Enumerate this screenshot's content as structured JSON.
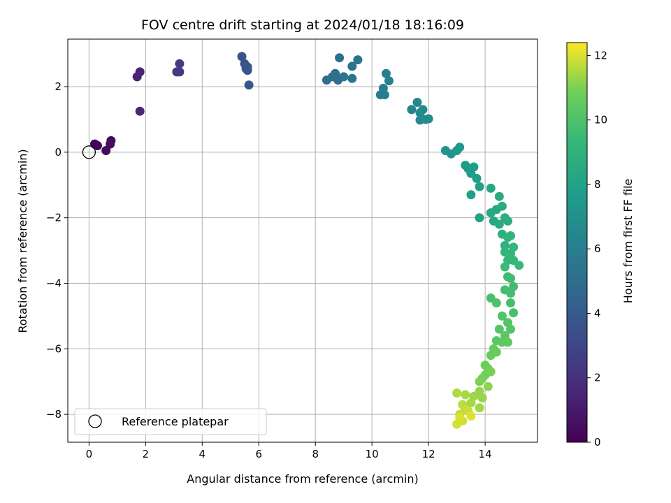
{
  "chart_data": {
    "type": "scatter",
    "title": "FOV centre drift starting at 2024/01/18 18:16:09",
    "xlabel": "Angular distance from reference (arcmin)",
    "ylabel": "Rotation from reference (arcmin)",
    "xlim": [
      -0.75,
      15.85
    ],
    "ylim": [
      -8.85,
      3.45
    ],
    "xticks": [
      0,
      2,
      4,
      6,
      8,
      10,
      12,
      14
    ],
    "yticks": [
      -8,
      -6,
      -4,
      -2,
      0,
      2
    ],
    "grid": true,
    "colorbar": {
      "label": "Hours from first FF file",
      "range": [
        0,
        12.4
      ],
      "ticks": [
        0,
        2,
        4,
        6,
        8,
        10,
        12
      ],
      "colormap": "viridis"
    },
    "reference": {
      "name": "Reference platepar",
      "x": 0,
      "y": 0
    },
    "legend": {
      "position": "lower-left",
      "entries": [
        "Reference platepar"
      ]
    },
    "series": [
      {
        "points": [
          [
            0.2,
            0.25,
            0.1
          ],
          [
            0.25,
            0.22,
            0.15
          ],
          [
            0.3,
            0.2,
            0.2
          ],
          [
            0.6,
            0.05,
            0.3
          ],
          [
            0.75,
            0.25,
            0.35
          ],
          [
            0.78,
            0.35,
            0.4
          ],
          [
            1.7,
            2.3,
            1.4
          ],
          [
            1.8,
            2.45,
            1.45
          ],
          [
            1.8,
            1.25,
            1.5
          ],
          [
            3.1,
            2.45,
            2.4
          ],
          [
            3.2,
            2.45,
            2.45
          ],
          [
            3.2,
            2.7,
            2.5
          ],
          [
            5.4,
            2.92,
            3.5
          ],
          [
            5.5,
            2.7,
            3.55
          ],
          [
            5.55,
            2.55,
            3.6
          ],
          [
            5.6,
            2.6,
            3.65
          ],
          [
            5.6,
            2.5,
            3.7
          ],
          [
            5.65,
            2.05,
            3.75
          ],
          [
            8.4,
            2.2,
            5.0
          ],
          [
            8.6,
            2.3,
            5.05
          ],
          [
            8.7,
            2.4,
            5.1
          ],
          [
            8.8,
            2.2,
            5.15
          ],
          [
            8.85,
            2.88,
            5.2
          ],
          [
            9.0,
            2.3,
            5.25
          ],
          [
            9.3,
            2.62,
            5.3
          ],
          [
            9.3,
            2.25,
            5.35
          ],
          [
            9.5,
            2.82,
            5.4
          ],
          [
            10.3,
            1.75,
            5.9
          ],
          [
            10.4,
            1.95,
            5.95
          ],
          [
            10.45,
            1.75,
            6.0
          ],
          [
            10.5,
            2.4,
            6.05
          ],
          [
            10.6,
            2.18,
            6.1
          ],
          [
            11.4,
            1.3,
            6.5
          ],
          [
            11.6,
            1.52,
            6.55
          ],
          [
            11.7,
            1.2,
            6.6
          ],
          [
            11.7,
            0.98,
            6.65
          ],
          [
            11.8,
            1.3,
            6.7
          ],
          [
            11.9,
            1.0,
            6.75
          ],
          [
            12.0,
            1.02,
            6.8
          ],
          [
            12.6,
            0.05,
            7.2
          ],
          [
            12.8,
            -0.05,
            7.25
          ],
          [
            13.0,
            0.05,
            7.3
          ],
          [
            13.1,
            0.15,
            7.35
          ],
          [
            13.3,
            -0.4,
            7.6
          ],
          [
            13.4,
            -0.5,
            7.65
          ],
          [
            13.5,
            -0.65,
            7.7
          ],
          [
            13.6,
            -0.45,
            7.75
          ],
          [
            13.7,
            -0.8,
            7.8
          ],
          [
            13.8,
            -1.05,
            7.85
          ],
          [
            13.5,
            -1.3,
            7.9
          ],
          [
            13.8,
            -2.0,
            7.95
          ],
          [
            14.2,
            -1.1,
            8.3
          ],
          [
            14.2,
            -1.85,
            8.35
          ],
          [
            14.3,
            -2.1,
            8.4
          ],
          [
            14.4,
            -1.75,
            8.45
          ],
          [
            14.5,
            -1.35,
            8.5
          ],
          [
            14.5,
            -2.2,
            8.55
          ],
          [
            14.6,
            -1.65,
            8.6
          ],
          [
            14.7,
            -2.0,
            8.65
          ],
          [
            14.8,
            -2.1,
            8.7
          ],
          [
            14.6,
            -2.5,
            8.9
          ],
          [
            14.7,
            -2.85,
            8.95
          ],
          [
            14.8,
            -2.6,
            9.0
          ],
          [
            14.9,
            -2.55,
            9.05
          ],
          [
            14.7,
            -3.05,
            9.1
          ],
          [
            14.9,
            -3.1,
            9.15
          ],
          [
            15.0,
            -2.9,
            9.2
          ],
          [
            14.8,
            -3.3,
            9.25
          ],
          [
            15.0,
            -3.3,
            9.3
          ],
          [
            15.2,
            -3.45,
            9.35
          ],
          [
            14.7,
            -3.5,
            9.5
          ],
          [
            14.8,
            -3.8,
            9.55
          ],
          [
            14.9,
            -3.85,
            9.6
          ],
          [
            15.0,
            -4.1,
            9.65
          ],
          [
            14.9,
            -4.3,
            9.7
          ],
          [
            14.7,
            -4.2,
            9.75
          ],
          [
            14.9,
            -4.6,
            9.8
          ],
          [
            15.0,
            -4.9,
            9.85
          ],
          [
            14.2,
            -4.45,
            9.9
          ],
          [
            14.4,
            -4.6,
            9.95
          ],
          [
            14.6,
            -5.0,
            10.1
          ],
          [
            14.8,
            -5.2,
            10.15
          ],
          [
            14.9,
            -5.4,
            10.2
          ],
          [
            14.5,
            -5.4,
            10.25
          ],
          [
            14.7,
            -5.6,
            10.3
          ],
          [
            14.6,
            -5.8,
            10.35
          ],
          [
            14.4,
            -5.75,
            10.4
          ],
          [
            14.8,
            -5.8,
            10.45
          ],
          [
            14.3,
            -6.0,
            10.6
          ],
          [
            14.4,
            -6.1,
            10.65
          ],
          [
            14.2,
            -6.2,
            10.7
          ],
          [
            14.0,
            -6.5,
            10.75
          ],
          [
            14.1,
            -6.6,
            10.8
          ],
          [
            14.0,
            -6.8,
            10.85
          ],
          [
            13.9,
            -6.9,
            10.9
          ],
          [
            14.2,
            -6.7,
            10.95
          ],
          [
            13.8,
            -7.0,
            11.0
          ],
          [
            14.1,
            -7.15,
            11.2
          ],
          [
            13.8,
            -7.3,
            11.25
          ],
          [
            13.9,
            -7.5,
            11.3
          ],
          [
            13.6,
            -7.45,
            11.35
          ],
          [
            13.8,
            -7.8,
            11.4
          ],
          [
            13.5,
            -7.65,
            11.45
          ],
          [
            13.3,
            -7.4,
            11.5
          ],
          [
            13.0,
            -7.35,
            11.55
          ],
          [
            13.2,
            -7.7,
            11.7
          ],
          [
            13.3,
            -7.85,
            11.75
          ],
          [
            13.1,
            -8.0,
            11.8
          ],
          [
            13.4,
            -7.9,
            11.85
          ],
          [
            13.2,
            -8.2,
            11.9
          ],
          [
            13.0,
            -8.3,
            11.95
          ],
          [
            13.1,
            -8.1,
            12.0
          ],
          [
            13.5,
            -8.05,
            12.1
          ]
        ]
      }
    ]
  }
}
